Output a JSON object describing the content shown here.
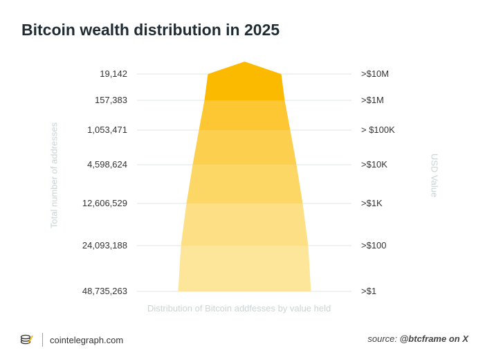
{
  "title": "Bitcoin wealth distribution in 2025",
  "chart_data": {
    "type": "area",
    "levels": [
      {
        "addresses": "19,142",
        "usd": ">$10M",
        "color": "#fbb900"
      },
      {
        "addresses": "157,383",
        "usd": ">$1M",
        "color": "#fbb900"
      },
      {
        "addresses": "1,053,471",
        "usd": "> $100K",
        "color": "#fcc733"
      },
      {
        "addresses": "4,598,624",
        "usd": ">$10K",
        "color": "#fccf4e"
      },
      {
        "addresses": "12,606,529",
        "usd": ">$1K",
        "color": "#fdd766"
      },
      {
        "addresses": "24,093,188",
        "usd": ">$100",
        "color": "#fde086"
      },
      {
        "addresses": "48,735,263",
        "usd": ">$1",
        "color": "#fde59a"
      }
    ],
    "ylabel": "Total number of addresses",
    "y2label": "USD Value",
    "xlabel": "Distribution of Bitcoin addfesses by value held",
    "grid": true
  },
  "footer": {
    "brand": "cointelegraph.com",
    "source_prefix": "source: ",
    "source_handle": "@btcframe on X"
  },
  "colors": {
    "gridline": "#dde6e6",
    "axis_title": "#c9d4d4",
    "title": "#1f2b33"
  }
}
